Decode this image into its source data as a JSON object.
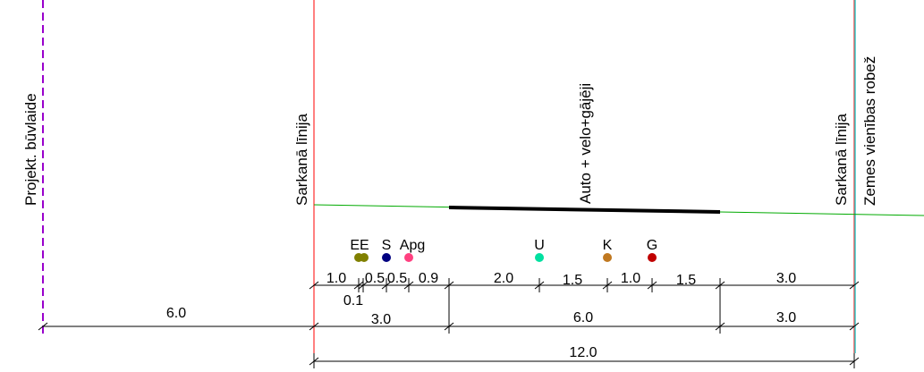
{
  "labels": {
    "building_line": "Projekt. būvlaide",
    "red_line_left": "Sarkanā līnija",
    "red_line_right": "Sarkanā līnija",
    "road": "Auto + velo+gājēji",
    "property_border": "Zemes vienības robež"
  },
  "utilities": [
    {
      "code": "EE",
      "color": "#808000"
    },
    {
      "code": "S",
      "color": "#000080"
    },
    {
      "code": "Apg",
      "color": "#ff4080"
    },
    {
      "code": "U",
      "color": "#00e0a0"
    },
    {
      "code": "K",
      "color": "#c07820"
    },
    {
      "code": "G",
      "color": "#c00000"
    }
  ],
  "dims_row1": [
    "1.0",
    "0.1",
    "0.5",
    "0.5",
    "0.9",
    "2.0",
    "1.5",
    "1.0",
    "1.5",
    "3.0"
  ],
  "dims_row2": [
    "6.0",
    "3.0",
    "6.0",
    "3.0"
  ],
  "dims_row3": [
    "12.0"
  ],
  "colors": {
    "building_line": "#9900cc",
    "red_line": "#ff0000",
    "border_line": "#33cccc",
    "ground": "#00aa00",
    "road": "#000000"
  }
}
